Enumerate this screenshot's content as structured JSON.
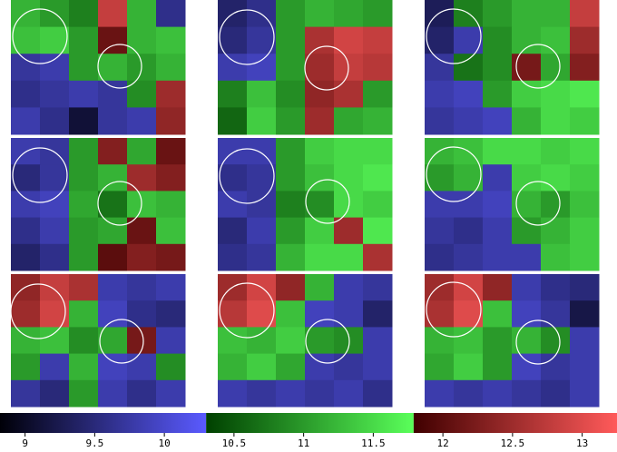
{
  "chart_data": {
    "type": "heatmap-grid",
    "panels": [
      {
        "values": [
          [
            11.2,
            11.0,
            10.8,
            12.8,
            11.2,
            9.6
          ],
          [
            11.3,
            11.4,
            11.0,
            12.1,
            11.2,
            11.3
          ],
          [
            9.7,
            9.8,
            11.0,
            11.2,
            11.0,
            11.2
          ],
          [
            9.6,
            9.7,
            9.8,
            9.7,
            10.9,
            12.5
          ],
          [
            9.8,
            9.6,
            9.1,
            9.7,
            9.8,
            12.4
          ]
        ]
      },
      {
        "values": [
          [
            9.4,
            9.6,
            11.0,
            11.2,
            11.1,
            11.0
          ],
          [
            9.5,
            9.7,
            11.0,
            12.6,
            12.9,
            12.8
          ],
          [
            9.8,
            9.9,
            11.0,
            12.5,
            12.8,
            12.7
          ],
          [
            10.8,
            11.3,
            10.9,
            12.4,
            12.6,
            11.0
          ],
          [
            10.6,
            11.4,
            11.0,
            12.5,
            11.1,
            11.2
          ]
        ]
      },
      {
        "values": [
          [
            9.3,
            10.8,
            11.0,
            11.2,
            11.2,
            12.8
          ],
          [
            9.4,
            9.8,
            10.9,
            11.2,
            11.3,
            12.5
          ],
          [
            9.7,
            10.7,
            10.9,
            12.2,
            11.1,
            12.3
          ],
          [
            9.8,
            9.9,
            11.0,
            11.4,
            11.5,
            11.6
          ],
          [
            9.7,
            9.8,
            9.9,
            11.2,
            11.5,
            11.4
          ]
        ]
      },
      {
        "values": [
          [
            9.8,
            9.7,
            11.0,
            12.3,
            11.1,
            12.1
          ],
          [
            9.5,
            9.7,
            11.0,
            11.2,
            12.5,
            12.3
          ],
          [
            9.8,
            9.9,
            11.1,
            10.7,
            11.3,
            11.2
          ],
          [
            9.6,
            9.8,
            11.0,
            11.1,
            12.1,
            11.3
          ],
          [
            9.4,
            9.6,
            11.0,
            12.0,
            12.3,
            12.2
          ]
        ]
      },
      {
        "values": [
          [
            9.8,
            9.8,
            11.0,
            11.4,
            11.5,
            11.5
          ],
          [
            9.6,
            9.7,
            11.0,
            11.3,
            11.5,
            11.6
          ],
          [
            9.8,
            9.7,
            10.8,
            10.9,
            11.5,
            11.4
          ],
          [
            9.5,
            9.8,
            11.0,
            11.4,
            12.5,
            11.6
          ],
          [
            9.6,
            9.7,
            11.2,
            11.5,
            11.5,
            12.6
          ]
        ]
      },
      {
        "values": [
          [
            11.2,
            11.3,
            11.5,
            11.5,
            11.4,
            11.5
          ],
          [
            11.0,
            11.2,
            9.8,
            11.4,
            11.5,
            11.4
          ],
          [
            9.8,
            9.8,
            9.9,
            11.2,
            11.0,
            11.3
          ],
          [
            9.7,
            9.6,
            9.8,
            11.0,
            11.2,
            11.4
          ],
          [
            9.6,
            9.7,
            9.8,
            9.8,
            11.3,
            11.4
          ]
        ]
      },
      {
        "values": [
          [
            12.4,
            12.8,
            12.6,
            9.8,
            9.7,
            9.8
          ],
          [
            12.5,
            12.9,
            11.2,
            9.9,
            9.6,
            9.5
          ],
          [
            11.2,
            11.3,
            10.9,
            11.1,
            12.2,
            9.8
          ],
          [
            11.0,
            9.8,
            11.2,
            9.9,
            9.8,
            10.9
          ],
          [
            9.7,
            9.5,
            11.0,
            9.8,
            9.6,
            9.8
          ]
        ]
      },
      {
        "values": [
          [
            12.5,
            12.9,
            12.4,
            11.2,
            9.8,
            9.7
          ],
          [
            12.7,
            13.0,
            11.3,
            9.9,
            9.8,
            9.4
          ],
          [
            11.3,
            11.2,
            11.4,
            11.0,
            10.9,
            9.8
          ],
          [
            11.2,
            11.4,
            11.1,
            9.8,
            9.7,
            9.8
          ],
          [
            9.8,
            9.7,
            9.8,
            9.7,
            9.8,
            9.6
          ]
        ]
      },
      {
        "values": [
          [
            12.5,
            12.9,
            12.4,
            9.8,
            9.6,
            9.5
          ],
          [
            12.6,
            13.0,
            11.3,
            9.9,
            9.7,
            9.2
          ],
          [
            11.2,
            11.3,
            11.0,
            11.2,
            10.9,
            9.8
          ],
          [
            11.1,
            11.4,
            11.0,
            9.9,
            9.7,
            9.8
          ],
          [
            9.8,
            9.7,
            9.8,
            9.7,
            9.6,
            9.8
          ]
        ]
      }
    ],
    "zlim": [
      8.82,
      13.25
    ],
    "zticks": [
      9,
      9.5,
      10,
      10.5,
      11,
      11.5,
      12,
      12.5,
      13
    ],
    "colormap": [
      {
        "range": [
          8.82,
          10.3
        ],
        "from": "#000008",
        "to": "#5a5aff"
      },
      {
        "range": [
          10.3,
          11.79
        ],
        "from": "#004000",
        "to": "#5aff5a"
      },
      {
        "range": [
          11.79,
          13.25
        ],
        "from": "#400000",
        "to": "#ff5a5a"
      }
    ]
  }
}
